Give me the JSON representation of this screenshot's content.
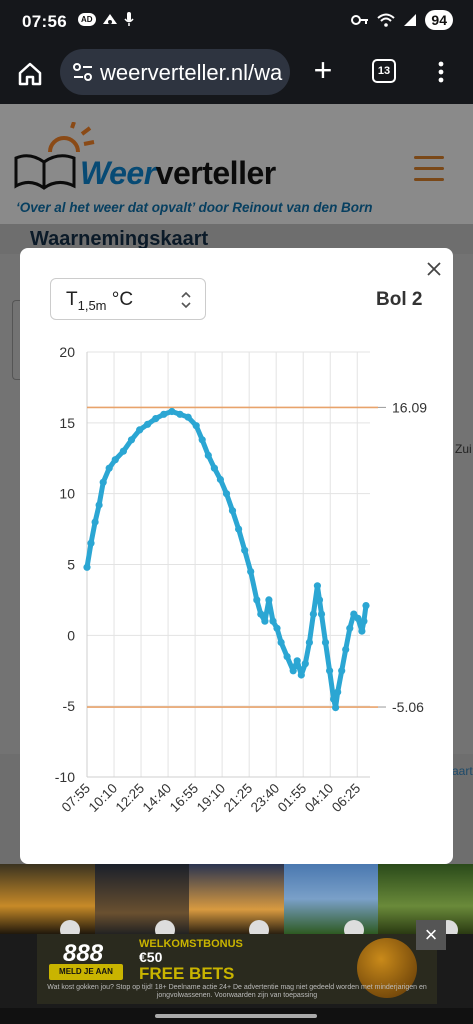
{
  "status_bar": {
    "time": "07:56",
    "battery": "94",
    "left_icons": [
      "ad-chip-icon",
      "game-icon",
      "mic-icon"
    ],
    "right_icons": [
      "key-icon",
      "wifi-icon",
      "signal-icon"
    ]
  },
  "browser": {
    "url": "weerverteller.nl/wa",
    "tab_count": "13"
  },
  "site": {
    "logo_weer": "Weer",
    "logo_verteller": "verteller",
    "tagline": "‘Over al het weer dat opvalt’ door Reinout van den Born",
    "section_title": "Waarnemingskaart",
    "map_label_right": "Zui",
    "map_label_kaart": "kaart"
  },
  "modal": {
    "select_label_main": "T",
    "select_label_sub": "1,5m",
    "select_label_unit": "°C",
    "station_name": "Bol 2"
  },
  "ad": {
    "brand": "888",
    "cta": "MELD JE AAN",
    "bonus": "WELKOMSTBONUS",
    "amount": "€50",
    "headline": "FREE BETS",
    "fine_print": "Wat kost gokken jou? Stop op tijd! 18+ Deelname actie 24+ De advertentie mag niet gedeeld worden met minderjarigen en jongvolwassenen. Voorwaarden zijn van toepassing"
  },
  "colors": {
    "series": "#2ba6d3",
    "reference_lines": "#e8a36b",
    "brand_blue": "#0a6aa6",
    "brand_orange": "#e07a20"
  },
  "chart_data": {
    "type": "line",
    "x_ticks": [
      "07:55",
      "10:10",
      "12:25",
      "14:40",
      "16:55",
      "19:10",
      "21:25",
      "23:40",
      "01:55",
      "04:10",
      "06:25"
    ],
    "ylim": [
      -10,
      20
    ],
    "y_ticks": [
      20,
      15,
      10,
      5,
      0,
      -5,
      -10
    ],
    "reference_lines": [
      16.09,
      -5.06
    ],
    "reference_labels": [
      "16.09",
      "-5.06"
    ],
    "grid": true,
    "series": [
      {
        "values": [
          [
            0,
            4.8
          ],
          [
            10,
            6.5
          ],
          [
            20,
            8.0
          ],
          [
            30,
            9.2
          ],
          [
            40,
            10.8
          ],
          [
            55,
            11.8
          ],
          [
            70,
            12.4
          ],
          [
            90,
            13.0
          ],
          [
            110,
            13.8
          ],
          [
            130,
            14.5
          ],
          [
            150,
            14.9
          ],
          [
            170,
            15.3
          ],
          [
            190,
            15.6
          ],
          [
            210,
            15.8
          ],
          [
            230,
            15.6
          ],
          [
            250,
            15.4
          ],
          [
            270,
            14.8
          ],
          [
            285,
            13.8
          ],
          [
            300,
            12.7
          ],
          [
            315,
            11.8
          ],
          [
            330,
            11.0
          ],
          [
            345,
            10.0
          ],
          [
            360,
            8.8
          ],
          [
            375,
            7.5
          ],
          [
            390,
            6.0
          ],
          [
            405,
            4.5
          ],
          [
            420,
            2.5
          ],
          [
            430,
            1.5
          ],
          [
            440,
            1.0
          ],
          [
            450,
            2.5
          ],
          [
            460,
            1.0
          ],
          [
            470,
            0.5
          ],
          [
            480,
            -0.5
          ],
          [
            495,
            -1.5
          ],
          [
            510,
            -2.5
          ],
          [
            520,
            -1.8
          ],
          [
            530,
            -2.8
          ],
          [
            540,
            -2.0
          ],
          [
            550,
            -0.5
          ],
          [
            560,
            1.5
          ],
          [
            570,
            3.5
          ],
          [
            575,
            2.5
          ],
          [
            580,
            1.5
          ],
          [
            590,
            -0.5
          ],
          [
            600,
            -2.5
          ],
          [
            610,
            -4.5
          ],
          [
            615,
            -5.1
          ],
          [
            620,
            -4.0
          ],
          [
            630,
            -2.5
          ],
          [
            640,
            -1.0
          ],
          [
            650,
            0.5
          ],
          [
            660,
            1.5
          ],
          [
            670,
            1.2
          ],
          [
            680,
            0.3
          ],
          [
            685,
            1.0
          ],
          [
            690,
            2.1
          ]
        ]
      }
    ]
  }
}
